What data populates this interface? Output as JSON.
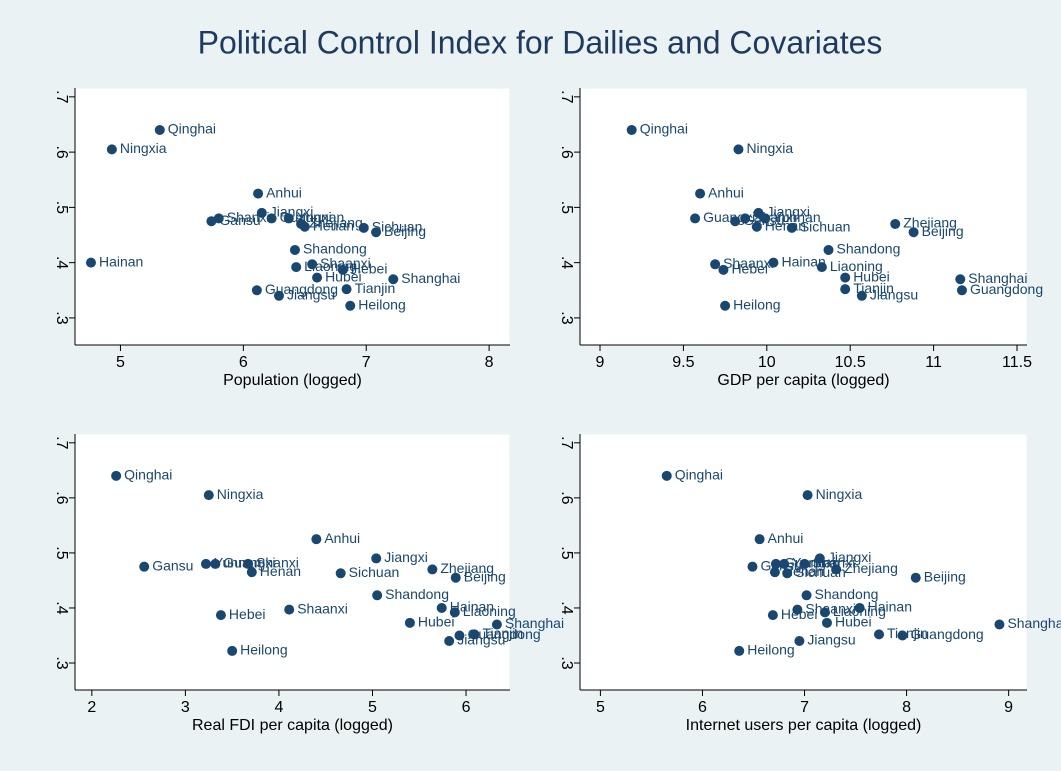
{
  "title": "Political Control Index for Dailies and Covariates",
  "chart_data": [
    {
      "type": "scatter",
      "x_label": "Population (logged)",
      "color": "#1a476f",
      "labels": [
        "Qinghai",
        "Ningxia",
        "Anhui",
        "Jiangxi",
        "Shanxi",
        "Gansu",
        "Guangxi",
        "Yunnan",
        "Zhejiang",
        "Henan",
        "Sichuan",
        "Beijing",
        "Shandong",
        "Hainan",
        "Shaanxi",
        "Liaoning",
        "Hebei",
        "Hubei",
        "Shanghai",
        "Tianjin",
        "Guangdong",
        "Jiangsu",
        "Heilong"
      ],
      "x": [
        5.32,
        4.93,
        6.12,
        6.15,
        5.8,
        5.74,
        6.23,
        6.37,
        6.47,
        6.5,
        6.98,
        7.08,
        6.42,
        4.76,
        6.56,
        6.43,
        6.81,
        6.6,
        7.22,
        6.84,
        6.11,
        6.29,
        6.87
      ],
      "y": [
        0.64,
        0.605,
        0.525,
        0.49,
        0.48,
        0.475,
        0.48,
        0.48,
        0.47,
        0.465,
        0.463,
        0.455,
        0.423,
        0.4,
        0.397,
        0.392,
        0.387,
        0.373,
        0.37,
        0.352,
        0.35,
        0.34,
        0.322
      ],
      "xlim": [
        4.63,
        8.17
      ],
      "ylim": [
        0.251,
        0.716
      ],
      "xticks": [
        5,
        6,
        7,
        8
      ],
      "yticks": [
        {
          "value": 0.3,
          "label": ".3"
        },
        {
          "value": 0.4,
          "label": ".4"
        },
        {
          "value": 0.5,
          "label": ".5"
        },
        {
          "value": 0.6,
          "label": ".6"
        },
        {
          "value": 0.7,
          "label": ".7"
        }
      ]
    },
    {
      "type": "scatter",
      "x_label": "GDP per capita (logged)",
      "color": "#1a476f",
      "labels": [
        "Qinghai",
        "Ningxia",
        "Anhui",
        "Jiangxi",
        "Shanxi",
        "Gansu",
        "Guangxi",
        "Yunnan",
        "Zhejiang",
        "Henan",
        "Sichuan",
        "Beijing",
        "Shandong",
        "Hainan",
        "Shaanxi",
        "Liaoning",
        "Hebei",
        "Hubei",
        "Shanghai",
        "Tianjin",
        "Guangdong",
        "Jiangsu",
        "Heilong"
      ],
      "x": [
        9.19,
        9.83,
        9.6,
        9.95,
        9.87,
        9.81,
        9.57,
        9.99,
        10.77,
        9.94,
        10.15,
        10.88,
        10.37,
        10.04,
        9.69,
        10.33,
        9.74,
        10.47,
        11.16,
        10.47,
        11.17,
        10.57,
        9.75
      ],
      "y": [
        0.64,
        0.605,
        0.525,
        0.49,
        0.48,
        0.475,
        0.48,
        0.48,
        0.47,
        0.465,
        0.463,
        0.455,
        0.423,
        0.4,
        0.397,
        0.392,
        0.387,
        0.373,
        0.37,
        0.352,
        0.35,
        0.34,
        0.322
      ],
      "xlim": [
        8.88,
        11.56
      ],
      "ylim": [
        0.251,
        0.716
      ],
      "xticks": [
        9,
        9.5,
        10,
        10.5,
        11,
        11.5
      ],
      "yticks": [
        {
          "value": 0.3,
          "label": ".3"
        },
        {
          "value": 0.4,
          "label": ".4"
        },
        {
          "value": 0.5,
          "label": ".5"
        },
        {
          "value": 0.6,
          "label": ".6"
        },
        {
          "value": 0.7,
          "label": ".7"
        }
      ]
    },
    {
      "type": "scatter",
      "x_label": "Real FDI per capita (logged)",
      "color": "#1a476f",
      "labels": [
        "Qinghai",
        "Ningxia",
        "Anhui",
        "Jiangxi",
        "Shanxi",
        "Gansu",
        "Guangxi",
        "Yunnan",
        "Zhejiang",
        "Henan",
        "Sichuan",
        "Beijing",
        "Shandong",
        "Hainan",
        "Shaanxi",
        "Liaoning",
        "Hebei",
        "Hubei",
        "Shanghai",
        "Tianjin",
        "Guangdong",
        "Jiangsu",
        "Heilong"
      ],
      "x": [
        2.26,
        3.25,
        4.4,
        5.04,
        3.67,
        2.56,
        3.32,
        3.22,
        5.64,
        3.71,
        4.66,
        5.89,
        5.05,
        5.74,
        4.11,
        5.88,
        3.38,
        5.4,
        6.33,
        6.09,
        5.93,
        5.82,
        3.5
      ],
      "y": [
        0.64,
        0.605,
        0.525,
        0.49,
        0.48,
        0.475,
        0.48,
        0.48,
        0.47,
        0.465,
        0.463,
        0.455,
        0.423,
        0.4,
        0.397,
        0.392,
        0.387,
        0.373,
        0.37,
        0.352,
        0.35,
        0.34,
        0.322
      ],
      "xlim": [
        1.82,
        6.47
      ],
      "ylim": [
        0.251,
        0.716
      ],
      "xticks": [
        2,
        3,
        4,
        5,
        6
      ],
      "yticks": [
        {
          "value": 0.3,
          "label": ".3"
        },
        {
          "value": 0.4,
          "label": ".4"
        },
        {
          "value": 0.5,
          "label": ".5"
        },
        {
          "value": 0.6,
          "label": ".6"
        },
        {
          "value": 0.7,
          "label": ".7"
        }
      ]
    },
    {
      "type": "scatter",
      "x_label": "Internet users per capita (logged)",
      "color": "#1a476f",
      "labels": [
        "Qinghai",
        "Ningxia",
        "Anhui",
        "Jiangxi",
        "Shanxi",
        "Gansu",
        "Guangxi",
        "Yunnan",
        "Zhejiang",
        "Henan",
        "Sichuan",
        "Beijing",
        "Shandong",
        "Hainan",
        "Shaanxi",
        "Liaoning",
        "Hebei",
        "Hubei",
        "Shanghai",
        "Tianjin",
        "Guangdong",
        "Jiangsu",
        "Heilong"
      ],
      "x": [
        5.65,
        7.03,
        6.56,
        7.15,
        7.0,
        6.49,
        6.72,
        6.8,
        7.31,
        6.71,
        6.83,
        8.09,
        7.02,
        7.54,
        6.93,
        7.2,
        6.69,
        7.22,
        8.91,
        7.73,
        7.96,
        6.95,
        6.36
      ],
      "y": [
        0.64,
        0.605,
        0.525,
        0.49,
        0.48,
        0.475,
        0.48,
        0.48,
        0.47,
        0.465,
        0.463,
        0.455,
        0.423,
        0.4,
        0.397,
        0.392,
        0.387,
        0.373,
        0.37,
        0.352,
        0.35,
        0.34,
        0.322
      ],
      "xlim": [
        4.8,
        9.18
      ],
      "ylim": [
        0.251,
        0.716
      ],
      "xticks": [
        5,
        6,
        7,
        8,
        9
      ],
      "yticks": [
        {
          "value": 0.3,
          "label": ".3"
        },
        {
          "value": 0.4,
          "label": ".4"
        },
        {
          "value": 0.5,
          "label": ".5"
        },
        {
          "value": 0.6,
          "label": ".6"
        },
        {
          "value": 0.7,
          "label": ".7"
        }
      ]
    }
  ]
}
